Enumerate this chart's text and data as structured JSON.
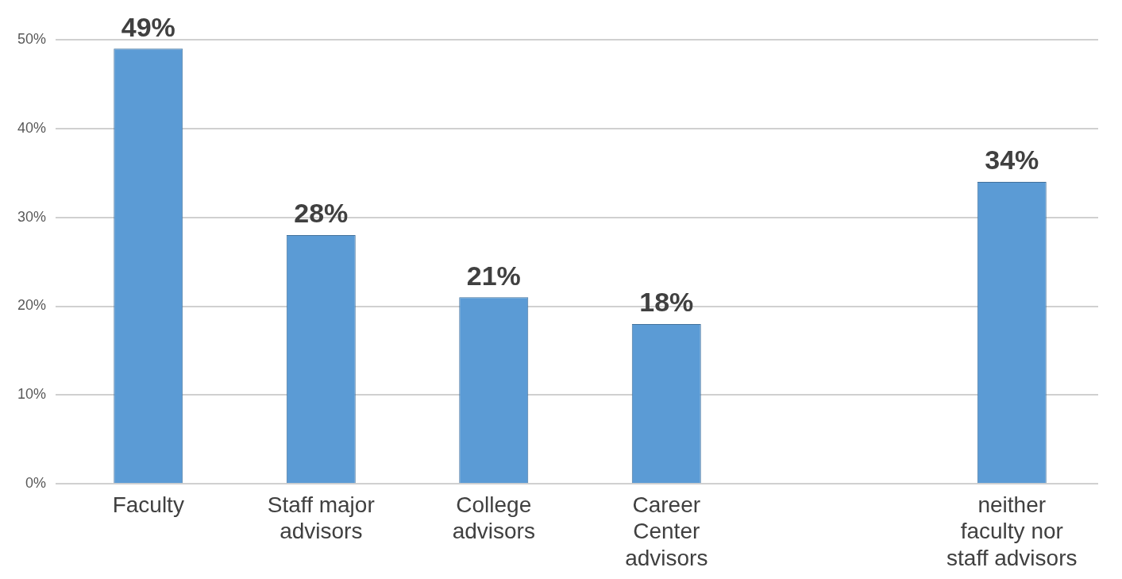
{
  "chart_data": {
    "type": "bar",
    "categories": [
      "Faculty",
      "Staff major advisors",
      "College advisors",
      "Career Center advisors",
      null,
      "neither faculty nor staff advisors"
    ],
    "values": [
      49,
      28,
      21,
      18,
      null,
      34
    ],
    "value_labels": [
      "49%",
      "28%",
      "21%",
      "18%",
      null,
      "34%"
    ],
    "color": "#5b9bd5",
    "ylim": [
      0,
      50
    ],
    "yticks": [
      {
        "value": 0,
        "label": "0%"
      },
      {
        "value": 10,
        "label": "10%"
      },
      {
        "value": 20,
        "label": "20%"
      },
      {
        "value": 30,
        "label": "30%"
      },
      {
        "value": 40,
        "label": "40%"
      },
      {
        "value": 50,
        "label": "50%"
      }
    ],
    "grid": "y",
    "legend": false
  }
}
